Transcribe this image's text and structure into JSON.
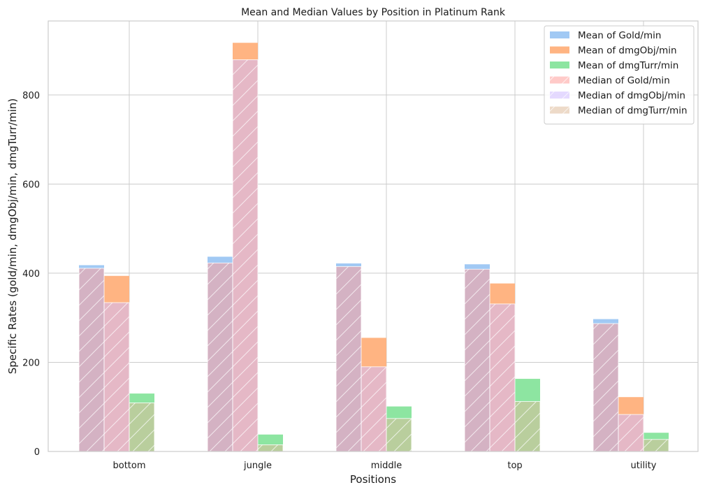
{
  "chart_data": {
    "type": "bar",
    "title": "Mean and Median Values by Position in Platinum Rank",
    "xlabel": "Positions",
    "ylabel": "Specific Rates (gold/min, dmgObj/min, dmgTurr/min)",
    "categories": [
      "bottom",
      "jungle",
      "middle",
      "top",
      "utility"
    ],
    "ylim": [
      0,
      966
    ],
    "yticks": [
      0,
      200,
      400,
      600,
      800
    ],
    "grid": true,
    "legend_position": "top-right",
    "series": [
      {
        "name": "Mean of Gold/min",
        "color": "#a1c9f4",
        "hatch": false,
        "slot": 0,
        "values": [
          418,
          437,
          422,
          420,
          297
        ]
      },
      {
        "name": "Mean of dmgObj/min",
        "color": "#ffb482",
        "hatch": false,
        "slot": 1,
        "values": [
          394,
          917,
          255,
          377,
          122
        ]
      },
      {
        "name": "Mean of dmgTurr/min",
        "color": "#8de5a1",
        "hatch": false,
        "slot": 2,
        "values": [
          130,
          38,
          101,
          163,
          42
        ]
      },
      {
        "name": "Median of Gold/min",
        "color": "#ff9f9b",
        "hatch": true,
        "slot": 0,
        "values": [
          411,
          423,
          415,
          409,
          287
        ]
      },
      {
        "name": "Median of dmgObj/min",
        "color": "#d0bbff",
        "hatch": true,
        "slot": 1,
        "values": [
          334,
          879,
          190,
          331,
          83
        ]
      },
      {
        "name": "Median of dmgTurr/min",
        "color": "#debb9b",
        "hatch": true,
        "slot": 2,
        "values": [
          109,
          15,
          74,
          112,
          27
        ]
      }
    ]
  }
}
